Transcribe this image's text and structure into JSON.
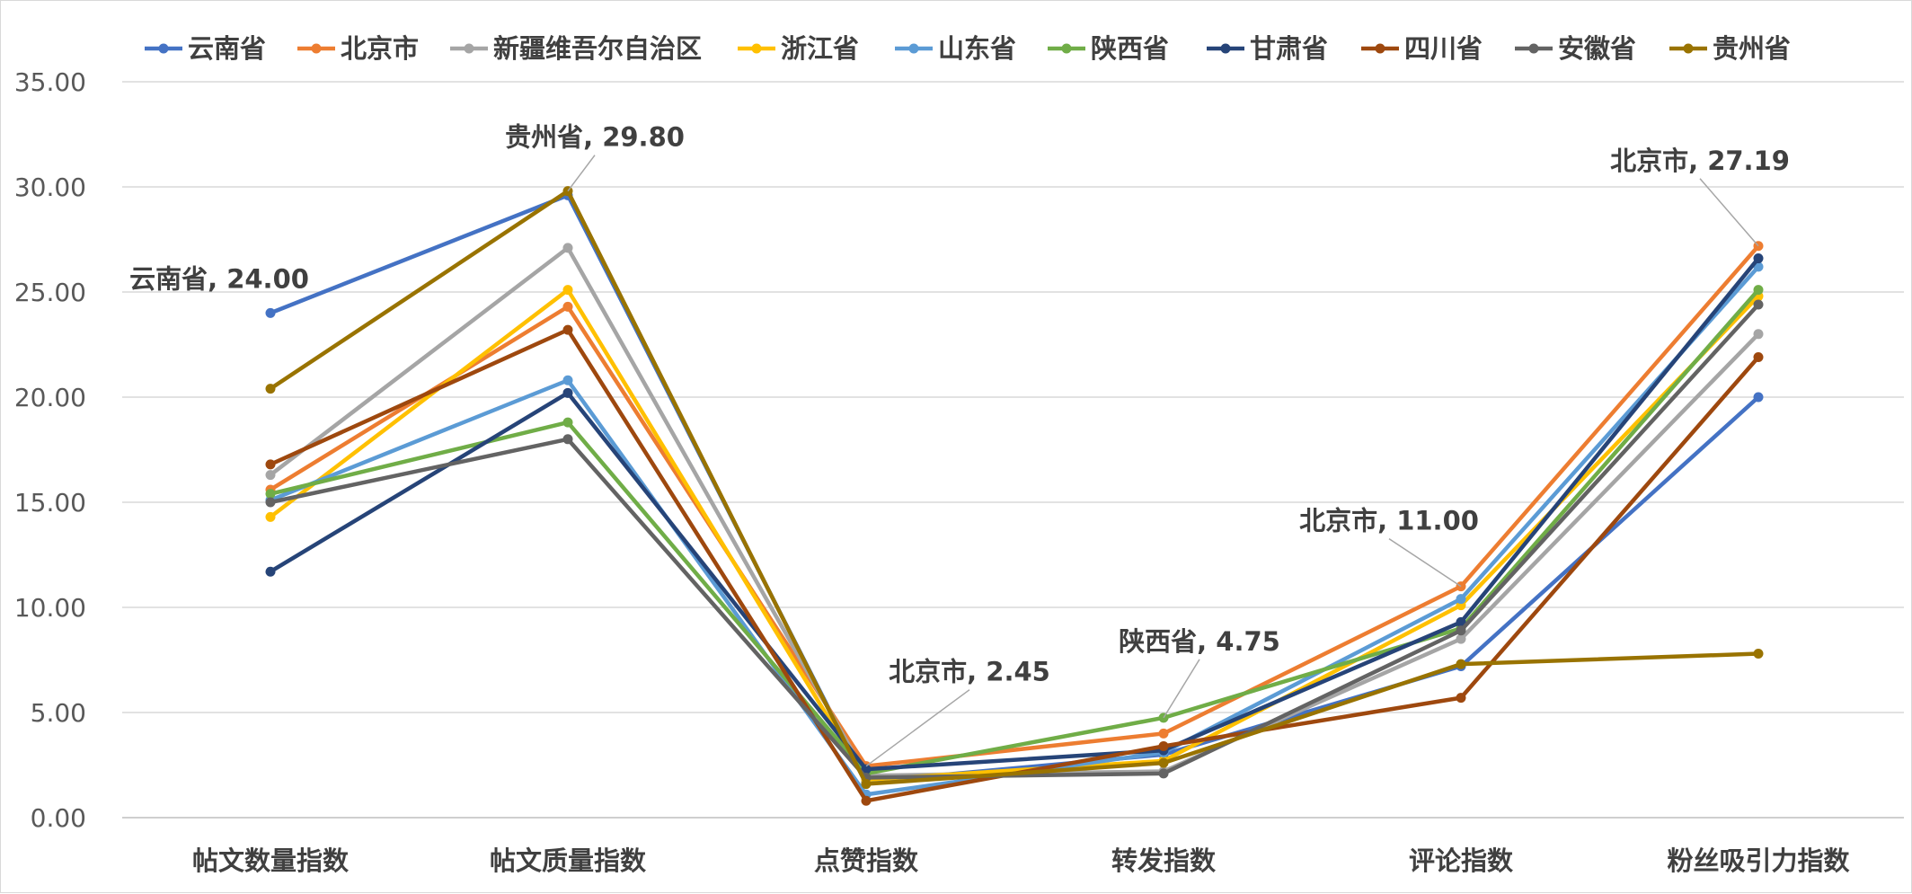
{
  "chart_data": {
    "type": "line",
    "title": "",
    "xlabel": "",
    "ylabel": "",
    "ylim": [
      0,
      35
    ],
    "yticks": [
      "0.00",
      "5.00",
      "10.00",
      "15.00",
      "20.00",
      "25.00",
      "30.00",
      "35.00"
    ],
    "grid": true,
    "legend_position": "top",
    "categories": [
      "帖文数量指数",
      "帖文质量指数",
      "点赞指数",
      "转发指数",
      "评论指数",
      "粉丝吸引力指数"
    ],
    "series": [
      {
        "name": "云南省",
        "color": "#4472c4",
        "values": [
          24.0,
          29.6,
          1.7,
          3.0,
          7.2,
          20.0
        ]
      },
      {
        "name": "北京市",
        "color": "#ed7d31",
        "values": [
          15.6,
          24.3,
          2.45,
          4.0,
          11.0,
          27.19
        ]
      },
      {
        "name": "新疆维吾尔自治区",
        "color": "#a5a5a5",
        "values": [
          16.3,
          27.1,
          2.0,
          2.2,
          8.5,
          23.0
        ]
      },
      {
        "name": "浙江省",
        "color": "#ffc000",
        "values": [
          14.3,
          25.1,
          1.8,
          2.7,
          10.1,
          24.8
        ]
      },
      {
        "name": "山东省",
        "color": "#5b9bd5",
        "values": [
          15.1,
          20.8,
          1.1,
          3.1,
          10.4,
          26.2
        ]
      },
      {
        "name": "陕西省",
        "color": "#70ad47",
        "values": [
          15.4,
          18.8,
          2.1,
          4.75,
          9.0,
          25.1
        ]
      },
      {
        "name": "甘肃省",
        "color": "#264478",
        "values": [
          11.7,
          20.2,
          2.3,
          3.2,
          9.3,
          26.6
        ]
      },
      {
        "name": "四川省",
        "color": "#9e480e",
        "values": [
          16.8,
          23.2,
          0.8,
          3.4,
          5.7,
          21.9
        ]
      },
      {
        "name": "安徽省",
        "color": "#636363",
        "values": [
          15.0,
          18.0,
          1.9,
          2.1,
          8.9,
          24.4
        ]
      },
      {
        "name": "贵州省",
        "color": "#997300",
        "values": [
          20.4,
          29.8,
          1.6,
          2.6,
          7.3,
          7.8
        ]
      }
    ],
    "annotations": [
      {
        "text": "云南省, 24.00",
        "series": 0,
        "point": 0
      },
      {
        "text": "贵州省, 29.80",
        "series": 9,
        "point": 1
      },
      {
        "text": "北京市, 2.45",
        "series": 1,
        "point": 2
      },
      {
        "text": "陕西省, 4.75",
        "series": 5,
        "point": 3
      },
      {
        "text": "北京市, 11.00",
        "series": 1,
        "point": 4
      },
      {
        "text": "北京市, 27.19",
        "series": 1,
        "point": 5
      }
    ]
  }
}
